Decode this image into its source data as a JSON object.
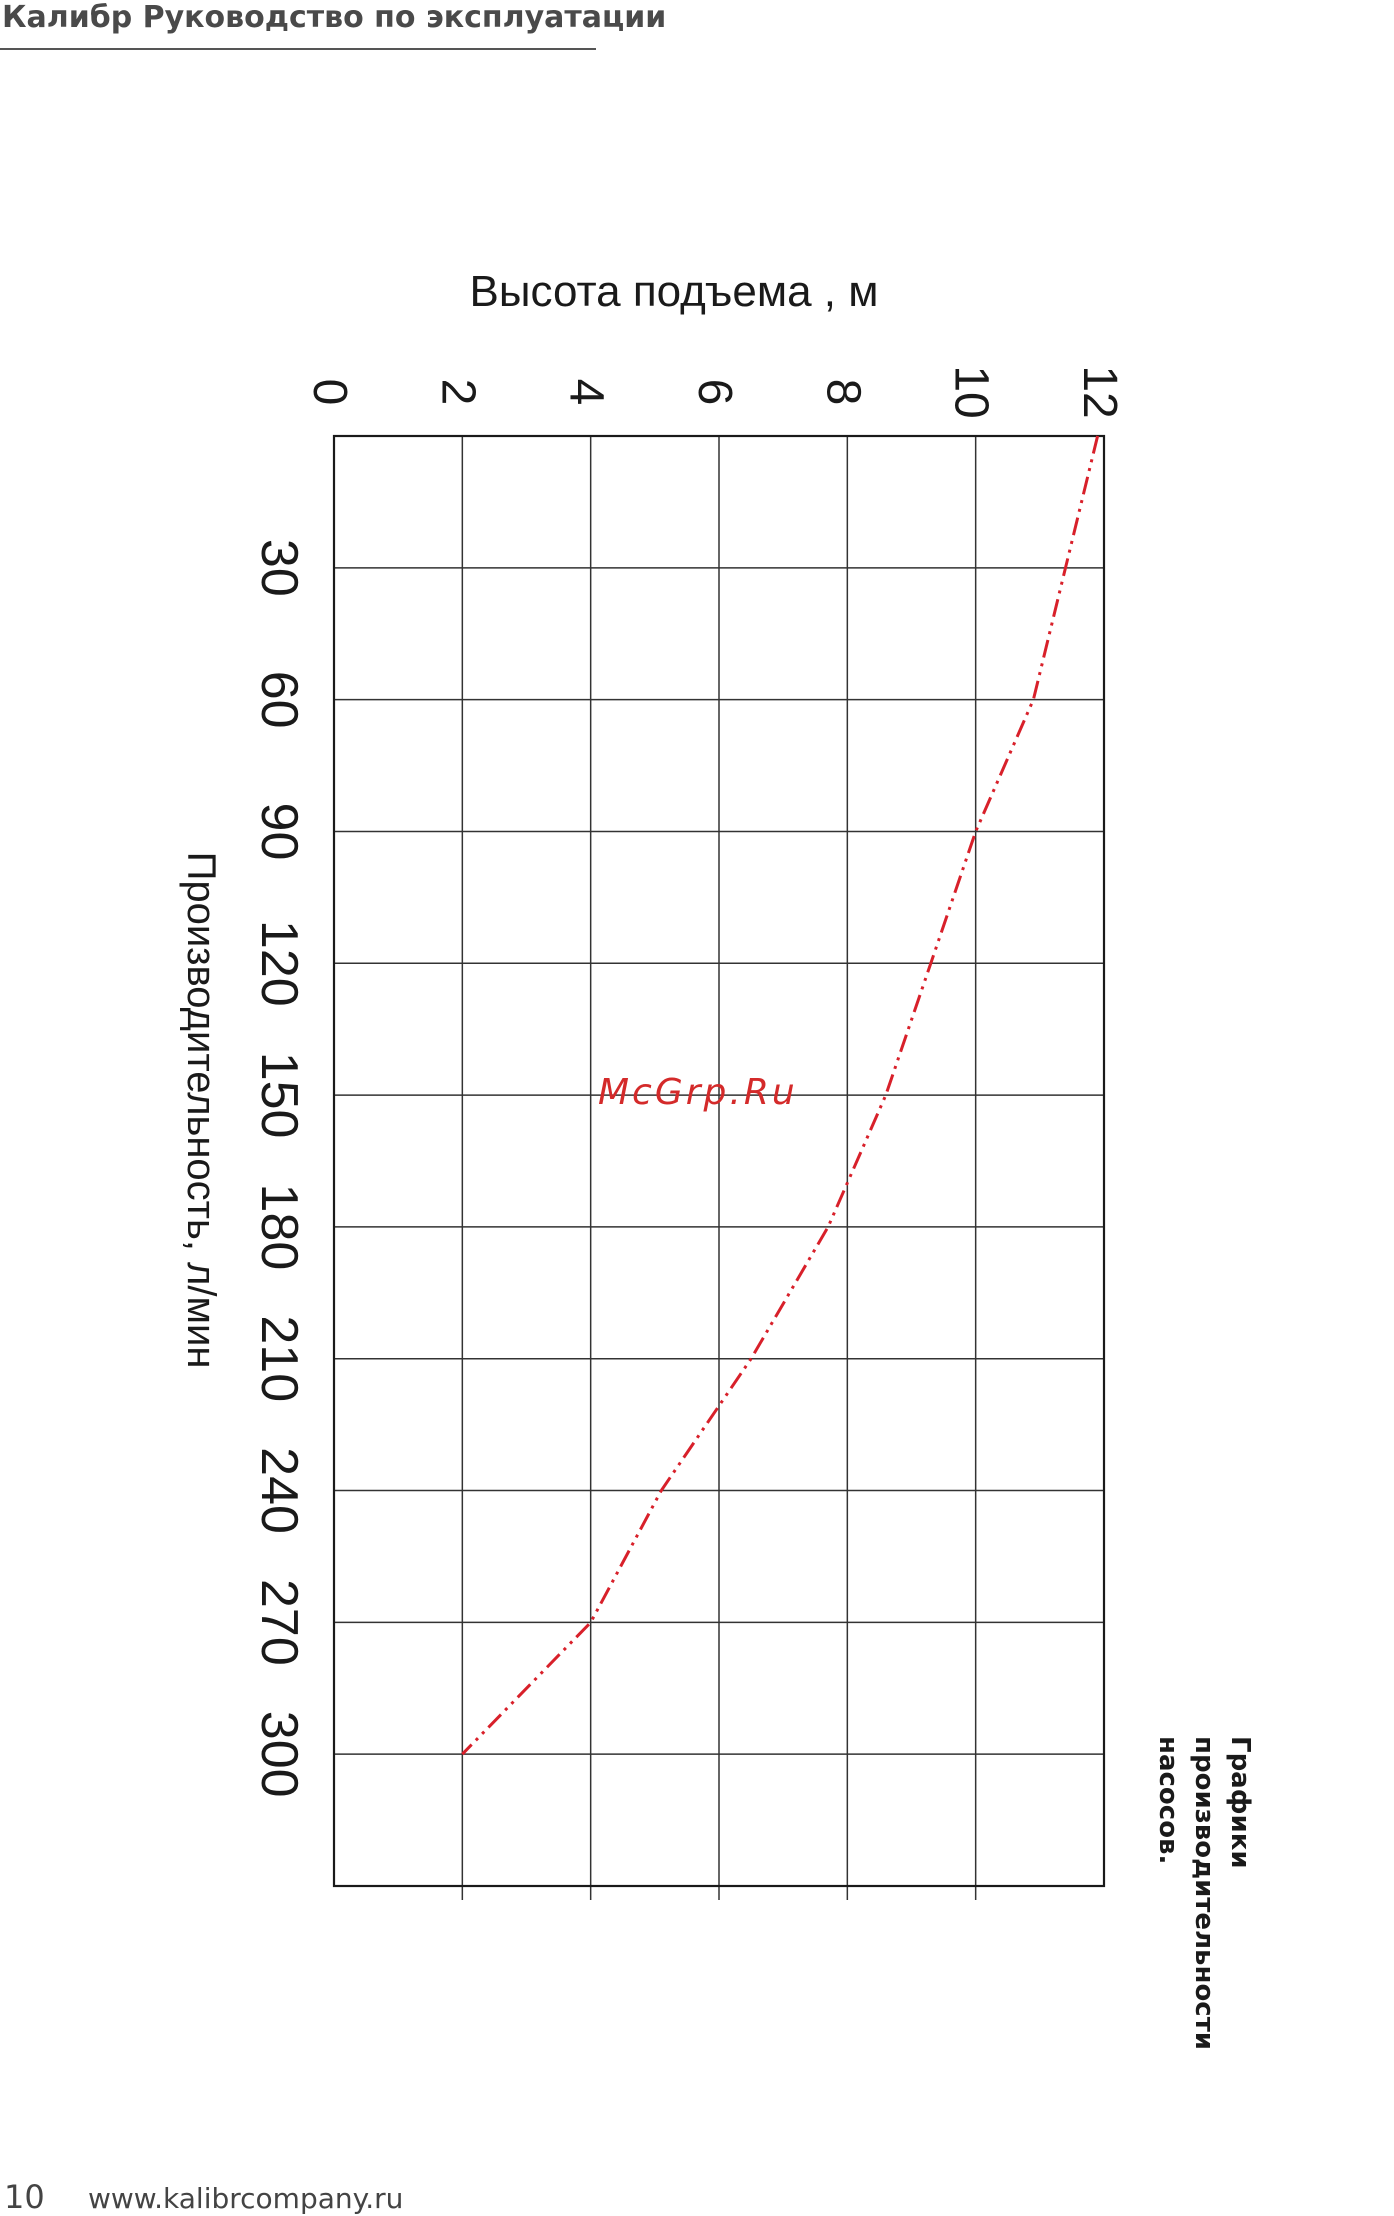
{
  "header": {
    "title": "Калибр Руководство по эксплуатации"
  },
  "chart_data": {
    "type": "line",
    "orientation": "rotated-90-clockwise",
    "title": "",
    "xlabel": "Производительность, л/мин",
    "ylabel": "Высота  подъема , м",
    "x_ticks": [
      30,
      60,
      90,
      120,
      150,
      180,
      210,
      240,
      270,
      300
    ],
    "y_ticks": [
      0,
      2,
      4,
      6,
      8,
      10,
      12
    ],
    "xlim": [
      0,
      330
    ],
    "ylim": [
      0,
      12
    ],
    "grid": true,
    "colors": {
      "series": "#d8202a"
    },
    "series": [
      {
        "name": "",
        "x": [
          0,
          30,
          60,
          90,
          120,
          150,
          180,
          210,
          240,
          270,
          300
        ],
        "y": [
          11.9,
          11.4,
          10.9,
          10.0,
          9.3,
          8.6,
          7.7,
          6.5,
          5.1,
          4.0,
          2.0
        ]
      }
    ]
  },
  "watermark": "McGrp.Ru",
  "caption": {
    "line1": "Графики",
    "line2": "производительности",
    "line3": "насосов."
  },
  "footer": {
    "page": "10",
    "url": "www.kalibrcompany.ru"
  }
}
